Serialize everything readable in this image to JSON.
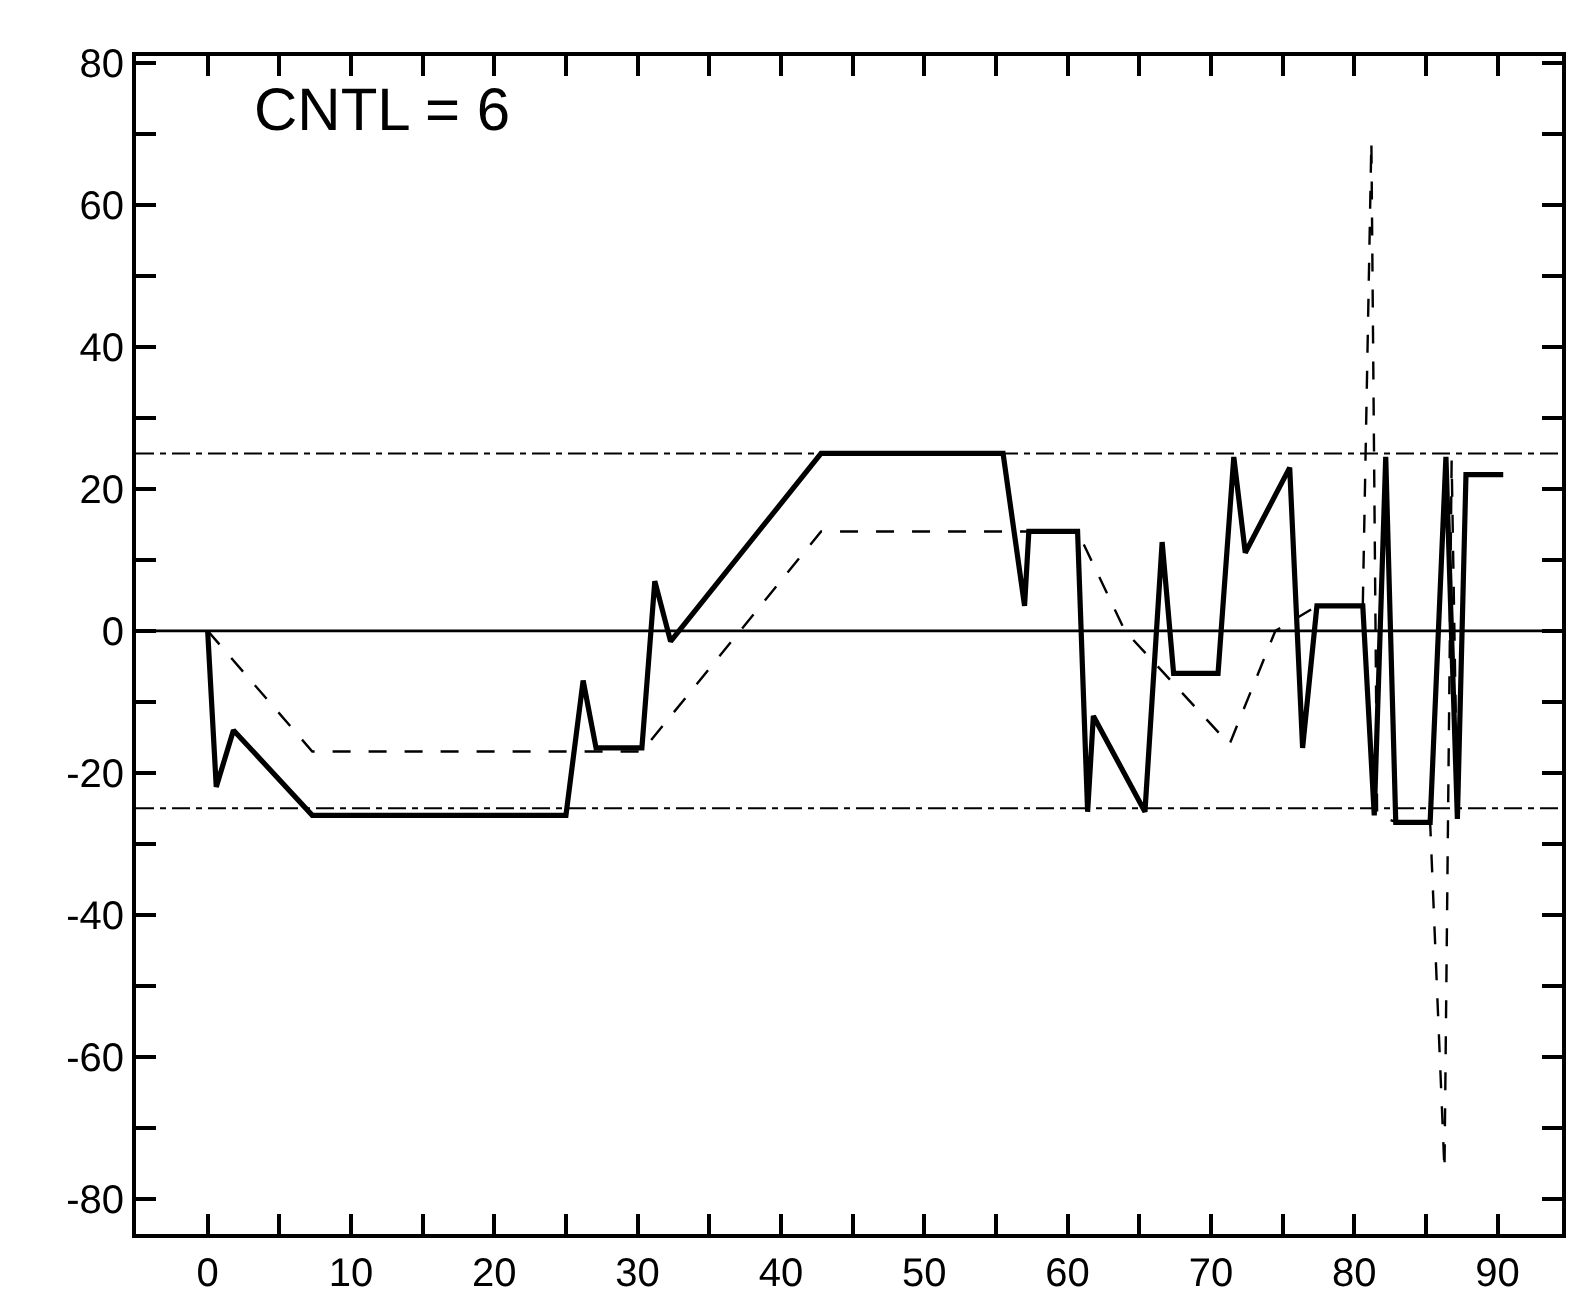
{
  "chart_data": {
    "type": "line",
    "annotations": [
      "CNTL = 6"
    ],
    "xlim": [
      -5,
      94.5
    ],
    "ylim": [
      -85,
      81
    ],
    "xticks": [
      0,
      {
        "value": 5,
        "label": null
      },
      10,
      {
        "value": 15,
        "label": null
      },
      20,
      {
        "value": 25,
        "label": null
      },
      30,
      {
        "value": 35,
        "label": null
      },
      40,
      {
        "value": 45,
        "label": null
      },
      50,
      {
        "value": 55,
        "label": null
      },
      60,
      {
        "value": 65,
        "label": null
      },
      70,
      {
        "value": 75,
        "label": null
      },
      80,
      {
        "value": 85,
        "label": null
      },
      90
    ],
    "yticks": [
      -80,
      {
        "value": -70,
        "label": null
      },
      -60,
      {
        "value": -50,
        "label": null
      },
      -40,
      {
        "value": -30,
        "label": null
      },
      -20,
      {
        "value": -10,
        "label": null
      },
      0,
      {
        "value": 10,
        "label": null
      },
      20,
      {
        "value": 30,
        "label": null
      },
      40,
      {
        "value": 50,
        "label": null
      },
      60,
      {
        "value": 70,
        "label": null
      },
      80
    ],
    "marker": "none",
    "ref_lines": [
      {
        "axis": "y",
        "value": 25,
        "color": "#000000",
        "line_style": "dashdot"
      },
      {
        "axis": "y",
        "value": -25,
        "color": "#000000",
        "line_style": "dashdot"
      },
      {
        "axis": "y",
        "value": 0,
        "color": "#000000",
        "line_style": "solid"
      }
    ],
    "series": [
      {
        "color": "#000000",
        "line_style": "solid",
        "x": [
          0,
          0.6,
          1.8,
          7.3,
          25,
          26.2,
          27.1,
          30.3,
          31.2,
          32.3,
          42.8,
          55.5,
          57,
          57.3,
          60.7,
          61.4,
          61.8,
          65.4,
          66.6,
          67.4,
          70.5,
          71.6,
          72.4,
          75.5,
          76.4,
          77.4,
          80.6,
          81.4,
          82.2,
          82.9,
          85.3,
          86.4,
          87.2,
          87.8,
          90.4
        ],
        "values": [
          0,
          -22,
          -14,
          -26,
          -26,
          -7,
          -16.5,
          -16.5,
          7,
          -1.5,
          25,
          25,
          3.5,
          14,
          14,
          -25.5,
          -12,
          -25.5,
          12.5,
          -6,
          -6,
          24.5,
          11,
          23,
          -16.5,
          3.5,
          3.5,
          -26,
          24.5,
          -27,
          -27,
          24.5,
          -26.5,
          22,
          22
        ]
      },
      {
        "color": "#000000",
        "line_style": "dashed",
        "x": [
          0,
          7.3,
          30.3,
          42.8,
          60.7,
          64,
          71.3,
          74.5,
          77.4,
          80.6,
          81.2,
          81.6,
          83,
          85.3,
          86.3,
          86.8,
          87.2,
          87.8,
          90.4
        ],
        "values": [
          0,
          -17,
          -17,
          14,
          14,
          0,
          -16,
          0,
          3.5,
          3.5,
          69,
          -26,
          -27,
          -27,
          -76,
          24,
          -26,
          22,
          22
        ]
      }
    ]
  }
}
